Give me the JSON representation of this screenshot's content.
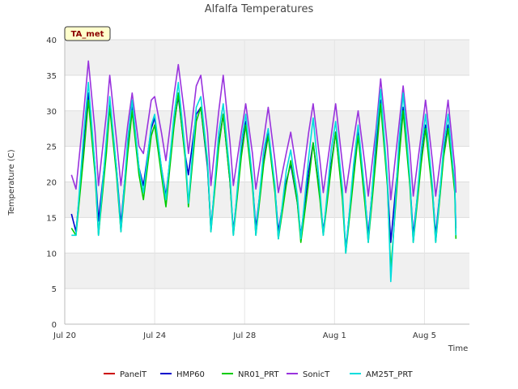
{
  "chart_data": {
    "type": "line",
    "title": "Alfalfa Temperatures",
    "badge": "TA_met",
    "xlabel": "Time",
    "ylabel": "Temperature (C)",
    "ylim": [
      0,
      40
    ],
    "yticks": [
      0,
      5,
      10,
      15,
      20,
      25,
      30,
      35,
      40
    ],
    "xlim_days": [
      0,
      18
    ],
    "xticks": [
      {
        "day": 0,
        "label": "Jul 20"
      },
      {
        "day": 4,
        "label": "Jul 24"
      },
      {
        "day": 8,
        "label": "Jul 28"
      },
      {
        "day": 12,
        "label": "Aug 1"
      },
      {
        "day": 16,
        "label": "Aug 5"
      }
    ],
    "grid": true,
    "legend_placement": "bottom",
    "series": [
      {
        "name": "PanelT",
        "color": "#cc0000",
        "points": []
      },
      {
        "name": "HMP60",
        "color": "#0000cc",
        "points": [
          [
            0.3,
            15.5
          ],
          [
            0.5,
            13.0
          ],
          [
            0.85,
            25.0
          ],
          [
            1.05,
            32.5
          ],
          [
            1.35,
            22.0
          ],
          [
            1.5,
            14.5
          ],
          [
            1.85,
            25.0
          ],
          [
            2.0,
            31.0
          ],
          [
            2.3,
            22.0
          ],
          [
            2.5,
            14.0
          ],
          [
            2.8,
            25.0
          ],
          [
            3.0,
            31.0
          ],
          [
            3.3,
            22.0
          ],
          [
            3.5,
            19.5
          ],
          [
            3.85,
            27.5
          ],
          [
            4.0,
            29.0
          ],
          [
            4.3,
            22.0
          ],
          [
            4.5,
            18.0
          ],
          [
            4.85,
            28.0
          ],
          [
            5.05,
            32.0
          ],
          [
            5.35,
            24.0
          ],
          [
            5.5,
            21.0
          ],
          [
            5.85,
            29.5
          ],
          [
            6.05,
            30.5
          ],
          [
            6.35,
            22.0
          ],
          [
            6.5,
            13.5
          ],
          [
            6.85,
            25.5
          ],
          [
            7.05,
            29.5
          ],
          [
            7.35,
            20.0
          ],
          [
            7.5,
            13.0
          ],
          [
            7.85,
            24.0
          ],
          [
            8.05,
            28.5
          ],
          [
            8.35,
            20.0
          ],
          [
            8.5,
            13.5
          ],
          [
            8.85,
            23.0
          ],
          [
            9.05,
            27.0
          ],
          [
            9.35,
            19.0
          ],
          [
            9.5,
            13.0
          ],
          [
            9.85,
            20.0
          ],
          [
            10.05,
            22.5
          ],
          [
            10.35,
            17.0
          ],
          [
            10.5,
            12.5
          ],
          [
            10.85,
            21.5
          ],
          [
            11.05,
            25.5
          ],
          [
            11.35,
            18.0
          ],
          [
            11.5,
            13.0
          ],
          [
            11.85,
            22.5
          ],
          [
            12.05,
            27.0
          ],
          [
            12.35,
            18.0
          ],
          [
            12.5,
            10.5
          ],
          [
            12.85,
            21.5
          ],
          [
            13.05,
            27.0
          ],
          [
            13.35,
            18.0
          ],
          [
            13.5,
            12.5
          ],
          [
            13.85,
            25.0
          ],
          [
            14.05,
            31.5
          ],
          [
            14.35,
            20.0
          ],
          [
            14.5,
            11.5
          ],
          [
            14.85,
            23.5
          ],
          [
            15.05,
            30.5
          ],
          [
            15.35,
            20.0
          ],
          [
            15.5,
            12.5
          ],
          [
            15.85,
            23.0
          ],
          [
            16.05,
            28.0
          ],
          [
            16.35,
            19.0
          ],
          [
            16.5,
            12.5
          ],
          [
            16.85,
            24.0
          ],
          [
            17.05,
            28.0
          ],
          [
            17.35,
            19.0
          ],
          [
            17.4,
            13.5
          ]
        ]
      },
      {
        "name": "NR01_PRT",
        "color": "#00cc00",
        "points": [
          [
            0.3,
            13.5
          ],
          [
            0.5,
            12.5
          ],
          [
            0.85,
            24.0
          ],
          [
            1.05,
            31.5
          ],
          [
            1.35,
            21.0
          ],
          [
            1.5,
            12.5
          ],
          [
            1.85,
            24.0
          ],
          [
            2.0,
            30.5
          ],
          [
            2.3,
            21.0
          ],
          [
            2.5,
            13.0
          ],
          [
            2.8,
            24.0
          ],
          [
            3.0,
            30.0
          ],
          [
            3.3,
            21.0
          ],
          [
            3.5,
            17.5
          ],
          [
            3.85,
            26.5
          ],
          [
            4.0,
            28.0
          ],
          [
            4.3,
            21.0
          ],
          [
            4.5,
            16.5
          ],
          [
            4.85,
            27.5
          ],
          [
            5.05,
            32.5
          ],
          [
            5.35,
            23.5
          ],
          [
            5.5,
            16.5
          ],
          [
            5.85,
            28.5
          ],
          [
            6.05,
            30.5
          ],
          [
            6.35,
            22.5
          ],
          [
            6.5,
            13.0
          ],
          [
            6.85,
            25.0
          ],
          [
            7.05,
            29.5
          ],
          [
            7.35,
            20.0
          ],
          [
            7.5,
            12.5
          ],
          [
            7.85,
            23.5
          ],
          [
            8.05,
            28.0
          ],
          [
            8.35,
            19.5
          ],
          [
            8.5,
            12.5
          ],
          [
            8.85,
            22.5
          ],
          [
            9.05,
            26.5
          ],
          [
            9.35,
            18.5
          ],
          [
            9.5,
            12.0
          ],
          [
            9.85,
            19.5
          ],
          [
            10.05,
            23.0
          ],
          [
            10.35,
            17.0
          ],
          [
            10.5,
            11.5
          ],
          [
            10.85,
            20.0
          ],
          [
            11.05,
            25.5
          ],
          [
            11.35,
            17.5
          ],
          [
            11.5,
            12.5
          ],
          [
            11.85,
            22.0
          ],
          [
            12.05,
            27.0
          ],
          [
            12.35,
            17.5
          ],
          [
            12.5,
            10.0
          ],
          [
            12.85,
            20.5
          ],
          [
            13.05,
            26.5
          ],
          [
            13.35,
            17.0
          ],
          [
            13.5,
            11.5
          ],
          [
            13.85,
            23.5
          ],
          [
            14.05,
            31.0
          ],
          [
            14.35,
            19.5
          ],
          [
            14.5,
            7.5
          ],
          [
            14.85,
            22.5
          ],
          [
            15.05,
            30.0
          ],
          [
            15.35,
            19.5
          ],
          [
            15.5,
            11.5
          ],
          [
            15.85,
            22.5
          ],
          [
            16.05,
            27.5
          ],
          [
            16.35,
            18.5
          ],
          [
            16.5,
            11.5
          ],
          [
            16.85,
            23.5
          ],
          [
            17.05,
            27.5
          ],
          [
            17.35,
            18.5
          ],
          [
            17.4,
            12.0
          ]
        ]
      },
      {
        "name": "SonicT",
        "color": "#9933dd",
        "points": [
          [
            0.3,
            21.0
          ],
          [
            0.5,
            19.0
          ],
          [
            0.85,
            30.0
          ],
          [
            1.05,
            37.0
          ],
          [
            1.35,
            27.0
          ],
          [
            1.5,
            19.5
          ],
          [
            1.85,
            29.5
          ],
          [
            2.0,
            35.0
          ],
          [
            2.3,
            26.0
          ],
          [
            2.5,
            19.5
          ],
          [
            2.8,
            28.0
          ],
          [
            3.0,
            32.5
          ],
          [
            3.3,
            25.0
          ],
          [
            3.5,
            24.0
          ],
          [
            3.85,
            31.5
          ],
          [
            4.0,
            32.0
          ],
          [
            4.3,
            27.0
          ],
          [
            4.5,
            23.0
          ],
          [
            4.85,
            32.0
          ],
          [
            5.05,
            36.5
          ],
          [
            5.35,
            29.0
          ],
          [
            5.5,
            24.0
          ],
          [
            5.85,
            33.5
          ],
          [
            6.05,
            35.0
          ],
          [
            6.35,
            27.0
          ],
          [
            6.5,
            19.5
          ],
          [
            6.85,
            30.0
          ],
          [
            7.05,
            35.0
          ],
          [
            7.35,
            25.5
          ],
          [
            7.5,
            19.5
          ],
          [
            7.85,
            27.0
          ],
          [
            8.05,
            31.0
          ],
          [
            8.35,
            24.0
          ],
          [
            8.5,
            19.0
          ],
          [
            8.85,
            26.0
          ],
          [
            9.05,
            30.5
          ],
          [
            9.35,
            23.0
          ],
          [
            9.5,
            18.5
          ],
          [
            9.85,
            24.0
          ],
          [
            10.05,
            27.0
          ],
          [
            10.35,
            21.0
          ],
          [
            10.5,
            18.5
          ],
          [
            10.85,
            27.0
          ],
          [
            11.05,
            31.0
          ],
          [
            11.35,
            23.0
          ],
          [
            11.5,
            18.5
          ],
          [
            11.85,
            26.5
          ],
          [
            12.05,
            31.0
          ],
          [
            12.35,
            22.5
          ],
          [
            12.5,
            18.5
          ],
          [
            12.85,
            26.0
          ],
          [
            13.05,
            30.0
          ],
          [
            13.35,
            22.5
          ],
          [
            13.5,
            18.0
          ],
          [
            13.85,
            27.5
          ],
          [
            14.05,
            34.5
          ],
          [
            14.35,
            25.0
          ],
          [
            14.5,
            17.5
          ],
          [
            14.85,
            27.5
          ],
          [
            15.05,
            33.5
          ],
          [
            15.35,
            24.5
          ],
          [
            15.5,
            18.0
          ],
          [
            15.85,
            26.5
          ],
          [
            16.05,
            31.5
          ],
          [
            16.35,
            23.0
          ],
          [
            16.5,
            18.0
          ],
          [
            16.85,
            26.5
          ],
          [
            17.05,
            31.5
          ],
          [
            17.35,
            22.0
          ],
          [
            17.4,
            18.5
          ]
        ]
      },
      {
        "name": "AM25T_PRT",
        "color": "#00dddd",
        "points": [
          [
            0.3,
            12.5
          ],
          [
            0.5,
            12.5
          ],
          [
            0.85,
            27.0
          ],
          [
            1.05,
            34.0
          ],
          [
            1.35,
            22.0
          ],
          [
            1.5,
            12.5
          ],
          [
            1.85,
            26.0
          ],
          [
            2.0,
            32.0
          ],
          [
            2.3,
            22.0
          ],
          [
            2.5,
            13.0
          ],
          [
            2.8,
            26.0
          ],
          [
            3.0,
            31.5
          ],
          [
            3.3,
            22.0
          ],
          [
            3.5,
            18.5
          ],
          [
            3.85,
            28.0
          ],
          [
            4.0,
            29.5
          ],
          [
            4.3,
            22.0
          ],
          [
            4.5,
            17.5
          ],
          [
            4.85,
            29.0
          ],
          [
            5.05,
            34.0
          ],
          [
            5.35,
            24.5
          ],
          [
            5.5,
            17.0
          ],
          [
            5.85,
            30.5
          ],
          [
            6.05,
            32.0
          ],
          [
            6.35,
            23.0
          ],
          [
            6.5,
            13.0
          ],
          [
            6.85,
            27.0
          ],
          [
            7.05,
            31.0
          ],
          [
            7.35,
            21.0
          ],
          [
            7.5,
            12.5
          ],
          [
            7.85,
            25.5
          ],
          [
            8.05,
            29.5
          ],
          [
            8.35,
            20.5
          ],
          [
            8.5,
            12.5
          ],
          [
            8.85,
            24.5
          ],
          [
            9.05,
            27.5
          ],
          [
            9.35,
            19.5
          ],
          [
            9.5,
            12.0
          ],
          [
            9.85,
            21.5
          ],
          [
            10.05,
            24.5
          ],
          [
            10.35,
            18.0
          ],
          [
            10.5,
            12.0
          ],
          [
            10.85,
            23.5
          ],
          [
            11.05,
            29.0
          ],
          [
            11.35,
            19.0
          ],
          [
            11.5,
            12.5
          ],
          [
            11.85,
            24.5
          ],
          [
            12.05,
            28.5
          ],
          [
            12.35,
            19.0
          ],
          [
            12.5,
            10.0
          ],
          [
            12.85,
            22.5
          ],
          [
            13.05,
            28.0
          ],
          [
            13.35,
            18.5
          ],
          [
            13.5,
            11.5
          ],
          [
            13.85,
            26.5
          ],
          [
            14.05,
            33.0
          ],
          [
            14.35,
            20.5
          ],
          [
            14.5,
            6.0
          ],
          [
            14.85,
            25.0
          ],
          [
            15.05,
            32.5
          ],
          [
            15.35,
            20.5
          ],
          [
            15.5,
            11.5
          ],
          [
            15.85,
            24.5
          ],
          [
            16.05,
            29.5
          ],
          [
            16.35,
            19.5
          ],
          [
            16.5,
            11.5
          ],
          [
            16.85,
            25.0
          ],
          [
            17.05,
            29.5
          ],
          [
            17.35,
            19.5
          ],
          [
            17.4,
            12.5
          ]
        ]
      }
    ]
  }
}
